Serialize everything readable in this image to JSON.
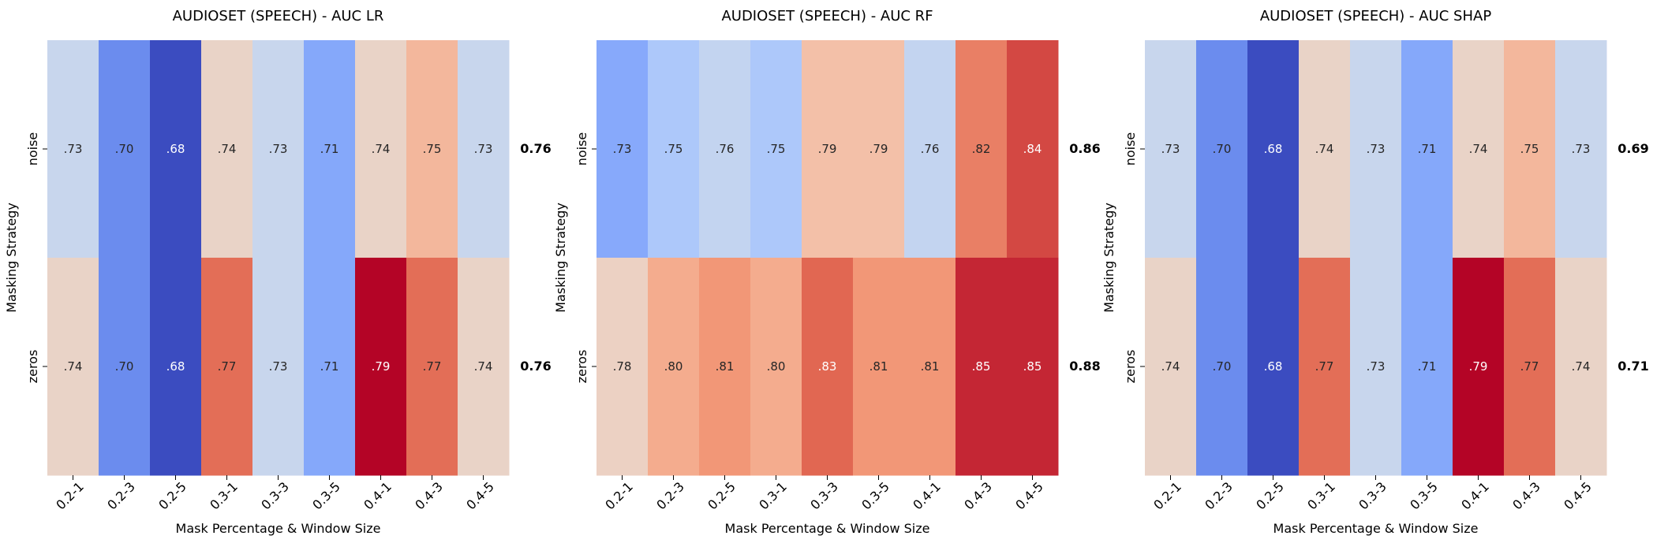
{
  "chart_data": [
    {
      "type": "heatmap",
      "title": "AUDIOSET (SPEECH) - AUC LR",
      "xlabel": "Mask Percentage & Window Size",
      "ylabel": "Masking Strategy",
      "x_categories": [
        "0.2-1",
        "0.2-3",
        "0.2-5",
        "0.3-1",
        "0.3-3",
        "0.3-5",
        "0.4-1",
        "0.4-3",
        "0.4-5"
      ],
      "y_categories": [
        "noise",
        "zeros"
      ],
      "values": [
        [
          0.73,
          0.7,
          0.68,
          0.74,
          0.73,
          0.71,
          0.74,
          0.75,
          0.73
        ],
        [
          0.74,
          0.7,
          0.68,
          0.77,
          0.73,
          0.71,
          0.79,
          0.77,
          0.74
        ]
      ],
      "labels": [
        [
          ".73",
          ".70",
          ".68",
          ".74",
          ".73",
          ".71",
          ".74",
          ".75",
          ".73"
        ],
        [
          ".74",
          ".70",
          ".68",
          ".77",
          ".73",
          ".71",
          ".79",
          ".77",
          ".74"
        ]
      ],
      "baselines": [
        "0.76",
        "0.76"
      ],
      "colormap": "coolwarm",
      "color_range": [
        0.68,
        0.79
      ]
    },
    {
      "type": "heatmap",
      "title": "AUDIOSET (SPEECH) - AUC RF",
      "xlabel": "Mask Percentage & Window Size",
      "ylabel": "Masking Strategy",
      "x_categories": [
        "0.2-1",
        "0.2-3",
        "0.2-5",
        "0.3-1",
        "0.3-3",
        "0.3-5",
        "0.4-1",
        "0.4-3",
        "0.4-5"
      ],
      "y_categories": [
        "noise",
        "zeros"
      ],
      "values": [
        [
          0.73,
          0.75,
          0.76,
          0.75,
          0.79,
          0.79,
          0.76,
          0.82,
          0.84
        ],
        [
          0.78,
          0.8,
          0.81,
          0.8,
          0.83,
          0.81,
          0.81,
          0.85,
          0.85
        ]
      ],
      "labels": [
        [
          ".73",
          ".75",
          ".76",
          ".75",
          ".79",
          ".79",
          ".76",
          ".82",
          ".84"
        ],
        [
          ".78",
          ".80",
          ".81",
          ".80",
          ".83",
          ".81",
          ".81",
          ".85",
          ".85"
        ]
      ],
      "baselines": [
        "0.86",
        "0.88"
      ],
      "colormap": "coolwarm",
      "color_range": [
        0.68,
        0.86
      ]
    },
    {
      "type": "heatmap",
      "title": "AUDIOSET (SPEECH) - AUC SHAP",
      "xlabel": "Mask Percentage & Window Size",
      "ylabel": "Masking Strategy",
      "x_categories": [
        "0.2-1",
        "0.2-3",
        "0.2-5",
        "0.3-1",
        "0.3-3",
        "0.3-5",
        "0.4-1",
        "0.4-3",
        "0.4-5"
      ],
      "y_categories": [
        "noise",
        "zeros"
      ],
      "values": [
        [
          0.73,
          0.7,
          0.68,
          0.74,
          0.73,
          0.71,
          0.74,
          0.75,
          0.73
        ],
        [
          0.74,
          0.7,
          0.68,
          0.77,
          0.73,
          0.71,
          0.79,
          0.77,
          0.74
        ]
      ],
      "labels": [
        [
          ".73",
          ".70",
          ".68",
          ".74",
          ".73",
          ".71",
          ".74",
          ".75",
          ".73"
        ],
        [
          ".74",
          ".70",
          ".68",
          ".77",
          ".73",
          ".71",
          ".79",
          ".77",
          ".74"
        ]
      ],
      "baselines": [
        "0.69",
        "0.71"
      ],
      "colormap": "coolwarm",
      "color_range": [
        0.68,
        0.79
      ]
    }
  ]
}
